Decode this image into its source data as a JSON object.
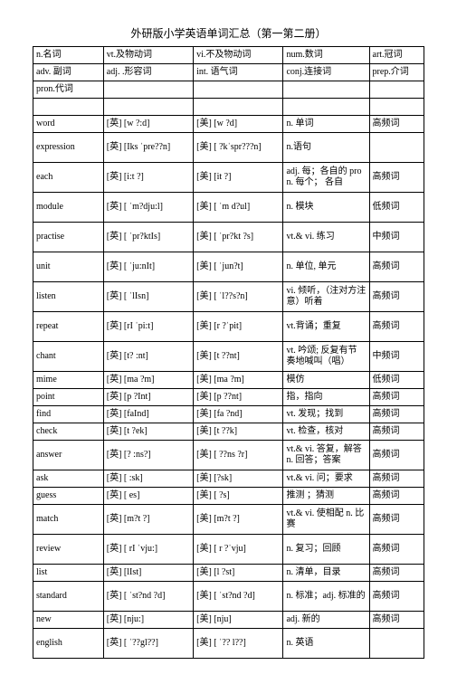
{
  "title": "外研版小学英语单词汇总（第一第二册）",
  "header_rows": [
    [
      "n.名词",
      "vt.及物动词",
      "vi.不及物动词",
      "num.数词",
      "art.冠词"
    ],
    [
      "adv. 副词",
      "adj. .形容词",
      "int. 语气词",
      "conj.连接词",
      "prep.介词"
    ],
    [
      "pron.代词",
      "",
      "",
      "",
      ""
    ],
    [
      "",
      "",
      "",
      "",
      ""
    ]
  ],
  "rows": [
    {
      "c1": "word",
      "c2": "[英] [w ?:d]",
      "c3": "[美] [w ?d]",
      "c4": "n. 单词",
      "c5": "高频词",
      "tall": false
    },
    {
      "c1": "expression",
      "c2": "[英] [Iks ˈpre??n]",
      "c3": "[美] [ ?kˈspr???n]",
      "c4": "n.语句",
      "c5": "",
      "tall": true
    },
    {
      "c1": "each",
      "c2": "[英] [i:t ?]",
      "c3": "[美] [it ?]",
      "c4": "adj. 每；各自的 pron. 每个； 各自",
      "c5": "高频词",
      "tall": true
    },
    {
      "c1": "module",
      "c2": "[英] [ ˈm?dju:l]",
      "c3": "[美] [ ˈm d?ul]",
      "c4": "n. 模块",
      "c5": "低频词",
      "tall": true
    },
    {
      "c1": "practise",
      "c2": "[英] [ ˈpr?ktIs]",
      "c3": "[美] [ ˈpr?kt ?s]",
      "c4": "vt.& vi.  练习",
      "c5": "中频词",
      "tall": true
    },
    {
      "c1": "unit",
      "c2": "[英] [ ˈju:nIt]",
      "c3": "[美] [ ˈjun?t]",
      "c4": "n. 单位, 单元",
      "c5": "高频词",
      "tall": true
    },
    {
      "c1": "listen",
      "c2": "[英] [ ˈlIsn]",
      "c3": "[美] [ ˈl??s?n]",
      "c4": "vi.  倾听，（注对方注意）听着",
      "c5": "高频词",
      "tall": true
    },
    {
      "c1": "repeat",
      "c2": "[英] [rI ˈpi:t]",
      "c3": "[美] [r ?ˈpit]",
      "c4": "vt.背诵；重复",
      "c5": "高频词",
      "tall": true
    },
    {
      "c1": "chant",
      "c2": "[英] [t? :nt]",
      "c3": "[美] [t ??nt]",
      "c4": "vt.  吟颂; 反复有节奏地喊叫（唱）",
      "c5": "中频词",
      "tall": true
    },
    {
      "c1": "mime",
      "c2": "[英] [ma ?m]",
      "c3": "[美] [ma ?m]",
      "c4": "模仿",
      "c5": "低频词",
      "tall": false
    },
    {
      "c1": "point",
      "c2": "[英] [p ?Int]",
      "c3": "[美] [p ??nt]",
      "c4": "指，指向",
      "c5": "高频词",
      "tall": false
    },
    {
      "c1": "find",
      "c2": "[英] [faInd]",
      "c3": "[美] [fa ?nd]",
      "c4": "vt.  发现；找到",
      "c5": "高频词",
      "tall": false
    },
    {
      "c1": "check",
      "c2": "[英] [t ?ek]",
      "c3": "[美] [t ??k]",
      "c4": "vt.  检查，核对",
      "c5": "高频词",
      "tall": false
    },
    {
      "c1": "answer",
      "c2": "[英] [? :ns?]",
      "c3": "[美] [ ??ns ?r]",
      "c4": "vt.& vi.  答复，解答 n. 回答；答案",
      "c5": "高频词",
      "tall": true
    },
    {
      "c1": "ask",
      "c2": "[英] [  :sk]",
      "c3": "[美] [?sk]",
      "c4": "vt.& vi.  问；要求",
      "c5": "高频词",
      "tall": false
    },
    {
      "c1": "guess",
      "c2": "[英] [  es]",
      "c3": "[美] [  ?s]",
      "c4": "推测 ；猜测",
      "c5": "高频词",
      "tall": false
    },
    {
      "c1": "match",
      "c2": "[英] [m?t ?]",
      "c3": "[美] [m?t ?]",
      "c4": "vt.& vi.  使相配 n. 比赛",
      "c5": "高频词",
      "tall": true
    },
    {
      "c1": "review",
      "c2": "[英] [ rI ˈvju:]",
      "c3": "[美] [ r ?ˈvju]",
      "c4": "n. 复习；回顾",
      "c5": "高频词",
      "tall": true
    },
    {
      "c1": "list",
      "c2": "[英] [lIst]",
      "c3": "[美] [l ?st]",
      "c4": "n. 清单，目录",
      "c5": "高频词",
      "tall": false
    },
    {
      "c1": "standard",
      "c2": "[英] [ ˈst?nd ?d]",
      "c3": "[美] [ ˈst?nd ?d]",
      "c4": "n. 标准；adj. 标准的",
      "c5": "高频词",
      "tall": true
    },
    {
      "c1": "new",
      "c2": "[英] [nju:]",
      "c3": "[美] [nju]",
      "c4": "adj. 新的",
      "c5": "高频词",
      "tall": false
    },
    {
      "c1": "english",
      "c2": "[英] [ ˈ??gl??]",
      "c3": "[美] [ ˈ?? l??]",
      "c4": "n. 英语",
      "c5": "",
      "tall": true
    }
  ]
}
